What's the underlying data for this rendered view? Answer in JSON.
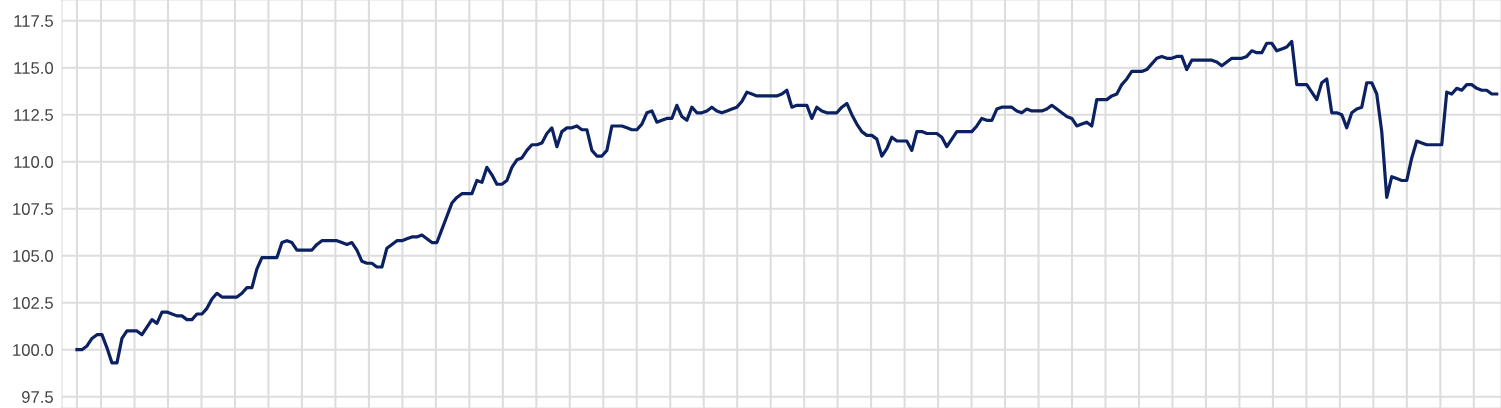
{
  "chart_data": {
    "type": "line",
    "categories": [
      null,
      null,
      null,
      null,
      null,
      null,
      null,
      null,
      null,
      null,
      null,
      null,
      null,
      null,
      null,
      null,
      null,
      null,
      null,
      null,
      null,
      null,
      null,
      null,
      null,
      null,
      null,
      null,
      null,
      null,
      null,
      null,
      null,
      null,
      null,
      null,
      null,
      null,
      null,
      null,
      null,
      null,
      null,
      null,
      null,
      null,
      null,
      null,
      null,
      null,
      null,
      null,
      null,
      null,
      null,
      null,
      null,
      null,
      null,
      null,
      null,
      null,
      null,
      null,
      null,
      null,
      null,
      null,
      null,
      null,
      null,
      null,
      null,
      null,
      null,
      null,
      null,
      null,
      null,
      null,
      null,
      null,
      null,
      null,
      null,
      null,
      null,
      null,
      null,
      null,
      null,
      null,
      null,
      null,
      null,
      null,
      null,
      null,
      null,
      null,
      null,
      null,
      null,
      null,
      null,
      null,
      null,
      null,
      null,
      null,
      null,
      null,
      null,
      null,
      null,
      null,
      null,
      null,
      null,
      null,
      null,
      null,
      null,
      null,
      null,
      null,
      null,
      null,
      null,
      null,
      null,
      null,
      null,
      null,
      null,
      null,
      null,
      null,
      null,
      null,
      null,
      null,
      null,
      null,
      null,
      null,
      null,
      null,
      null,
      null,
      null,
      null,
      null,
      null,
      null,
      null,
      null,
      null,
      null,
      null,
      null,
      null,
      null,
      null,
      null,
      null,
      null,
      null,
      null,
      null,
      null,
      null,
      null,
      null,
      null,
      null,
      null,
      null,
      null,
      null,
      null,
      null,
      null,
      null,
      null,
      null,
      null,
      null,
      null,
      null,
      null,
      null,
      null,
      null,
      null,
      null,
      null,
      null,
      null,
      null,
      null,
      null,
      null,
      null,
      null,
      null,
      null,
      null,
      null,
      null,
      null,
      null,
      null,
      null,
      null,
      null,
      null,
      null,
      null,
      null,
      null,
      null,
      null,
      null,
      null,
      null,
      null,
      null,
      null,
      null,
      null,
      null,
      null,
      null,
      null,
      null,
      null,
      null,
      null,
      null,
      null,
      null,
      null,
      null,
      null,
      null,
      null,
      null,
      null,
      null,
      null,
      null,
      null,
      null,
      null,
      null,
      null,
      null,
      null,
      null,
      null,
      null,
      null,
      null,
      null,
      null,
      null,
      null,
      null,
      null,
      null,
      null,
      null,
      null,
      null,
      null,
      null,
      null,
      null,
      null,
      null,
      null,
      null,
      null,
      null
    ],
    "series": [
      {
        "color": "#0c2161",
        "values": [
          100.0,
          100.0,
          100.2,
          100.6,
          100.8,
          100.8,
          100.1,
          99.3,
          99.3,
          100.6,
          101.0,
          101.0,
          101.0,
          100.8,
          101.2,
          101.6,
          101.4,
          102.0,
          102.0,
          101.9,
          101.8,
          101.8,
          101.6,
          101.6,
          101.9,
          101.9,
          102.2,
          102.7,
          103.0,
          102.8,
          102.8,
          102.8,
          102.8,
          103.0,
          103.3,
          103.3,
          104.3,
          104.9,
          104.9,
          104.9,
          104.9,
          105.7,
          105.8,
          105.7,
          105.3,
          105.3,
          105.3,
          105.3,
          105.6,
          105.8,
          105.8,
          105.8,
          105.8,
          105.7,
          105.6,
          105.7,
          105.3,
          104.7,
          104.6,
          104.6,
          104.4,
          104.4,
          105.4,
          105.6,
          105.8,
          105.8,
          105.9,
          106.0,
          106.0,
          106.1,
          105.9,
          105.7,
          105.7,
          106.4,
          107.1,
          107.8,
          108.1,
          108.3,
          108.3,
          108.3,
          109.0,
          108.9,
          109.7,
          109.3,
          108.8,
          108.8,
          109.0,
          109.7,
          110.1,
          110.2,
          110.6,
          110.9,
          110.9,
          111.0,
          111.5,
          111.8,
          110.8,
          111.6,
          111.8,
          111.8,
          111.9,
          111.7,
          111.7,
          110.6,
          110.3,
          110.3,
          110.6,
          111.9,
          111.9,
          111.9,
          111.8,
          111.7,
          111.7,
          112.0,
          112.6,
          112.7,
          112.1,
          112.2,
          112.3,
          112.3,
          113.0,
          112.4,
          112.2,
          112.9,
          112.6,
          112.6,
          112.7,
          112.9,
          112.7,
          112.6,
          112.7,
          112.8,
          112.9,
          113.2,
          113.7,
          113.6,
          113.5,
          113.5,
          113.5,
          113.5,
          113.5,
          113.6,
          113.8,
          112.9,
          113.0,
          113.0,
          113.0,
          112.3,
          112.9,
          112.7,
          112.6,
          112.6,
          112.6,
          112.9,
          113.1,
          112.5,
          112.0,
          111.6,
          111.4,
          111.4,
          111.2,
          110.3,
          110.7,
          111.3,
          111.1,
          111.1,
          111.1,
          110.6,
          111.6,
          111.6,
          111.5,
          111.5,
          111.5,
          111.3,
          110.8,
          111.2,
          111.6,
          111.6,
          111.6,
          111.6,
          111.9,
          112.3,
          112.2,
          112.2,
          112.8,
          112.9,
          112.9,
          112.9,
          112.7,
          112.6,
          112.8,
          112.7,
          112.7,
          112.7,
          112.8,
          113.0,
          112.8,
          112.6,
          112.4,
          112.3,
          111.9,
          112.0,
          112.1,
          111.9,
          113.3,
          113.3,
          113.3,
          113.5,
          113.6,
          114.1,
          114.4,
          114.8,
          114.8,
          114.8,
          114.9,
          115.2,
          115.5,
          115.6,
          115.5,
          115.5,
          115.6,
          115.6,
          114.9,
          115.4,
          115.4,
          115.4,
          115.4,
          115.4,
          115.3,
          115.1,
          115.3,
          115.5,
          115.5,
          115.5,
          115.6,
          115.9,
          115.8,
          115.8,
          116.3,
          116.3,
          115.9,
          116.0,
          116.1,
          116.4,
          114.1,
          114.1,
          114.1,
          113.7,
          113.3,
          114.2,
          114.4,
          112.6,
          112.6,
          112.5,
          111.8,
          112.6,
          112.8,
          112.9,
          114.2,
          114.2,
          113.6,
          111.6,
          108.1,
          109.2,
          109.1,
          109.0,
          109.0,
          110.2,
          111.1,
          111.0,
          110.9,
          110.9,
          110.9,
          110.9,
          113.7,
          113.6,
          113.9,
          113.8,
          114.1,
          114.1,
          113.9,
          113.8,
          113.8,
          113.6,
          113.6
        ]
      }
    ],
    "ylim": [
      96.9,
      118.6
    ],
    "yticks": [
      {
        "value": 97.5,
        "label": "97.5"
      },
      {
        "value": 100,
        "label": "100.0"
      },
      {
        "value": 102.5,
        "label": "102.5"
      },
      {
        "value": 105,
        "label": "105.0"
      },
      {
        "value": 107.5,
        "label": "107.5"
      },
      {
        "value": 110,
        "label": "110.0"
      },
      {
        "value": 112.5,
        "label": "112.5"
      },
      {
        "value": 115,
        "label": "115.0"
      },
      {
        "value": 117.5,
        "label": "117.5"
      }
    ],
    "grid": true,
    "tick_labels": "y",
    "line_style": "solid"
  }
}
